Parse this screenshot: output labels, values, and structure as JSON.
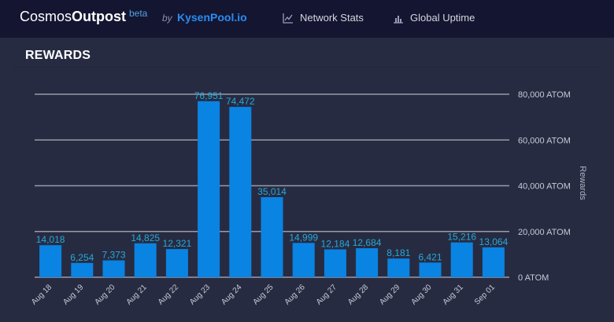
{
  "header": {
    "brand_light": "Cosmos",
    "brand_bold": "Outpost",
    "beta": "beta",
    "by": "by",
    "pool": "KysenPool.io",
    "nav": [
      {
        "label": "Network Stats",
        "icon": "line-chart-icon"
      },
      {
        "label": "Global Uptime",
        "icon": "bar-chart-icon"
      }
    ]
  },
  "panel": {
    "title": "REWARDS"
  },
  "colors": {
    "bar": "#0984e3",
    "data_label": "#27a9d6",
    "grid": "#9a9ba6",
    "tick": "#c8cad4",
    "axis_title": "#b0b3c0"
  },
  "chart_data": {
    "type": "bar",
    "categories": [
      "Aug 18",
      "Aug 19",
      "Aug 20",
      "Aug 21",
      "Aug 22",
      "Aug 23",
      "Aug 24",
      "Aug 25",
      "Aug 26",
      "Aug 27",
      "Aug 28",
      "Aug 29",
      "Aug 30",
      "Aug 31",
      "Sep 01"
    ],
    "values": [
      14018,
      6254,
      7373,
      14825,
      12321,
      76951,
      74472,
      35014,
      14999,
      12184,
      12684,
      8181,
      6421,
      15216,
      13064
    ],
    "labels": [
      "14,018",
      "6,254",
      "7,373",
      "14,825",
      "12,321",
      "76,951",
      "74,472",
      "35,014",
      "14,999",
      "12,184",
      "12,684",
      "8,181",
      "6,421",
      "15,216",
      "13,064"
    ],
    "ylabel": "Rewards",
    "yticks": [
      0,
      20000,
      40000,
      60000,
      80000
    ],
    "ytick_labels": [
      "0 ATOM",
      "20,000 ATOM",
      "40,000 ATOM",
      "60,000 ATOM",
      "80,000 ATOM"
    ],
    "ylim": [
      0,
      80000
    ],
    "y_axis_side": "right",
    "grid": true,
    "legend": "none"
  }
}
